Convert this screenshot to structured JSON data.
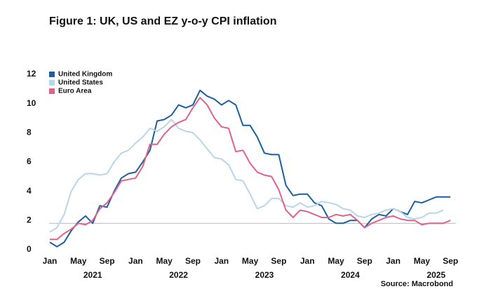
{
  "chart_data": {
    "type": "line",
    "title": "Figure 1: UK, US and EZ y-o-y CPI inflation",
    "source": "Source: Macrobond",
    "x": [
      "2021-01",
      "2021-02",
      "2021-03",
      "2021-04",
      "2021-05",
      "2021-06",
      "2021-07",
      "2021-08",
      "2021-09",
      "2021-10",
      "2021-11",
      "2021-12",
      "2022-01",
      "2022-02",
      "2022-03",
      "2022-04",
      "2022-05",
      "2022-06",
      "2022-07",
      "2022-08",
      "2022-09",
      "2022-10",
      "2022-11",
      "2022-12",
      "2023-01",
      "2023-02",
      "2023-03",
      "2023-04",
      "2023-05",
      "2023-06",
      "2023-07",
      "2023-08",
      "2023-09",
      "2023-10",
      "2023-11",
      "2023-12",
      "2024-01",
      "2024-02",
      "2024-03",
      "2024-04",
      "2024-05",
      "2024-06",
      "2024-07",
      "2024-08",
      "2024-09",
      "2024-10",
      "2024-11",
      "2024-12",
      "2025-01",
      "2025-02",
      "2025-03",
      "2025-04",
      "2025-05",
      "2025-06",
      "2025-07",
      "2025-08",
      "2025-09"
    ],
    "series": [
      {
        "name": "United Kingdom",
        "color": "#1c5f9e",
        "values": [
          0.7,
          0.4,
          0.7,
          1.5,
          2.1,
          2.5,
          2.0,
          3.2,
          3.1,
          4.2,
          5.1,
          5.4,
          5.5,
          6.2,
          7.0,
          9.0,
          9.1,
          9.4,
          10.1,
          9.9,
          10.1,
          11.1,
          10.7,
          10.5,
          10.1,
          10.4,
          10.1,
          8.7,
          8.7,
          7.9,
          6.8,
          6.7,
          6.7,
          4.6,
          3.9,
          4.0,
          4.0,
          3.4,
          3.2,
          2.3,
          2.0,
          2.0,
          2.2,
          2.2,
          1.7,
          2.3,
          2.6,
          2.5,
          3.0,
          2.8,
          2.6,
          3.5,
          3.4,
          3.6,
          3.8,
          3.8,
          3.8
        ]
      },
      {
        "name": "United States",
        "color": "#b8d5eb",
        "values": [
          1.4,
          1.7,
          2.6,
          4.2,
          5.0,
          5.4,
          5.4,
          5.3,
          5.4,
          6.2,
          6.8,
          7.0,
          7.5,
          7.9,
          8.5,
          8.3,
          8.6,
          9.1,
          8.5,
          8.3,
          8.2,
          7.7,
          7.1,
          6.5,
          6.4,
          6.0,
          5.0,
          4.9,
          4.0,
          3.0,
          3.2,
          3.7,
          3.7,
          3.2,
          3.1,
          3.4,
          3.1,
          3.2,
          3.5,
          3.4,
          3.3,
          3.0,
          2.9,
          2.5,
          2.4,
          2.6,
          2.7,
          2.9,
          3.0,
          2.8,
          2.4,
          2.3,
          2.4,
          2.7,
          2.7,
          2.9,
          null
        ]
      },
      {
        "name": "Euro Area",
        "color": "#e0628c",
        "values": [
          0.9,
          0.9,
          1.3,
          1.6,
          2.0,
          1.9,
          2.2,
          3.0,
          3.4,
          4.1,
          4.9,
          5.0,
          5.1,
          5.9,
          7.4,
          7.4,
          8.1,
          8.6,
          8.9,
          9.1,
          9.9,
          10.6,
          10.1,
          9.2,
          8.6,
          8.5,
          6.9,
          7.0,
          6.1,
          5.5,
          5.3,
          5.2,
          4.3,
          2.9,
          2.4,
          2.9,
          2.8,
          2.6,
          2.4,
          2.4,
          2.6,
          2.5,
          2.6,
          2.2,
          1.7,
          2.0,
          2.2,
          2.4,
          2.5,
          2.3,
          2.2,
          2.2,
          1.9,
          2.0,
          2.0,
          2.0,
          2.2
        ]
      }
    ],
    "xticks": [
      {
        "value": "2021-01",
        "label": "Jan"
      },
      {
        "value": "2021-05",
        "label": "May"
      },
      {
        "value": "2021-09",
        "label": "Sep"
      },
      {
        "value": "2022-01",
        "label": "Jan"
      },
      {
        "value": "2022-05",
        "label": "May"
      },
      {
        "value": "2022-09",
        "label": "Sep"
      },
      {
        "value": "2023-01",
        "label": "Jan"
      },
      {
        "value": "2023-05",
        "label": "May"
      },
      {
        "value": "2023-09",
        "label": "Sep"
      },
      {
        "value": "2024-01",
        "label": "Jan"
      },
      {
        "value": "2024-05",
        "label": "May"
      },
      {
        "value": "2024-09",
        "label": "Sep"
      },
      {
        "value": "2025-01",
        "label": "Jan"
      },
      {
        "value": "2025-05",
        "label": "May"
      },
      {
        "value": "2025-09",
        "label": "Sep"
      }
    ],
    "year_labels": [
      {
        "value": "2021-07",
        "label": "2021"
      },
      {
        "value": "2022-07",
        "label": "2022"
      },
      {
        "value": "2023-07",
        "label": "2023"
      },
      {
        "value": "2024-07",
        "label": "2024"
      },
      {
        "value": "2025-07",
        "label": "2025"
      }
    ],
    "ylim": [
      0,
      12
    ],
    "yticks": [
      0,
      2,
      4,
      6,
      8,
      10,
      12
    ],
    "reference_line": 2,
    "grid": false,
    "legend": "top-left"
  }
}
